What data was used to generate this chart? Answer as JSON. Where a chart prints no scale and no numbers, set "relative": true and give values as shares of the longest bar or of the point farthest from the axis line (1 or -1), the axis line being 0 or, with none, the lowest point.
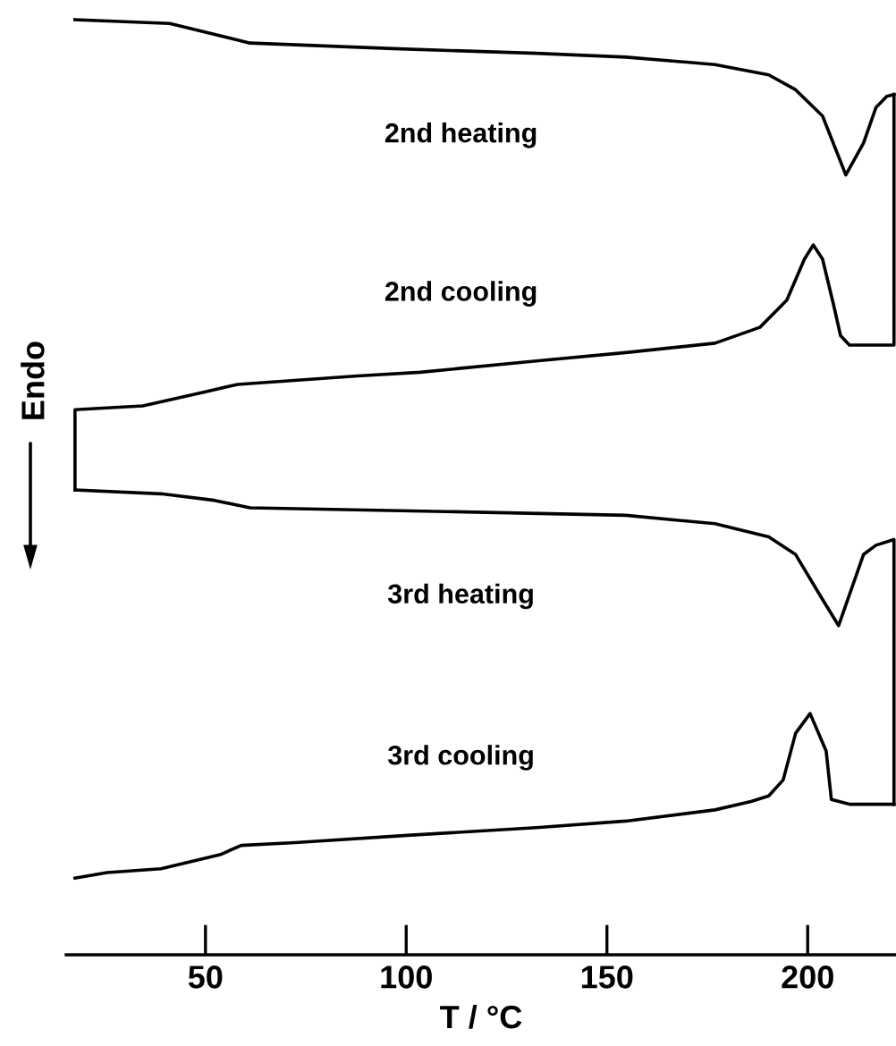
{
  "chart_data": {
    "type": "line",
    "relative": true,
    "xlabel": "T / °C",
    "ylabel": "Endo",
    "xlim": [
      15.3,
      222
    ],
    "xticks": [
      50,
      100,
      150,
      200
    ],
    "tick_labels": "x",
    "grid": false,
    "legend": false,
    "marker": "none",
    "line_style": "solid",
    "series": [
      {
        "name": "2nd heating",
        "color": "#000000",
        "x": [
          17.5,
          41.1,
          61.1,
          96.8,
          132.4,
          154.7,
          176.9,
          190.3,
          197.0,
          203.7,
          209.5,
          213.9,
          217.0,
          219.7,
          221.5
        ],
        "values": [
          1.0,
          0.996,
          0.975,
          0.969,
          0.964,
          0.96,
          0.952,
          0.941,
          0.925,
          0.897,
          0.834,
          0.868,
          0.906,
          0.918,
          0.92
        ]
      },
      {
        "name": "2nd cooling",
        "color": "#000000",
        "x": [
          221.5,
          221.5,
          210.4,
          208.2,
          206.4,
          203.7,
          201.4,
          199.2,
          194.8,
          188.1,
          176.9,
          154.7,
          132.4,
          103.5,
          87.9,
          58.0,
          50.0,
          34.4,
          17.5,
          17.5
        ],
        "values": [
          0.92,
          0.652,
          0.652,
          0.662,
          0.696,
          0.744,
          0.759,
          0.744,
          0.7,
          0.671,
          0.654,
          0.644,
          0.635,
          0.623,
          0.619,
          0.61,
          0.602,
          0.587,
          0.583,
          0.497
        ]
      },
      {
        "name": "3rd heating",
        "color": "#000000",
        "x": [
          17.5,
          38.9,
          52.2,
          61.1,
          110.1,
          154.7,
          176.9,
          190.3,
          197.0,
          203.7,
          207.7,
          213.9,
          217.0,
          221.5,
          221.5
        ],
        "values": [
          0.497,
          0.493,
          0.486,
          0.478,
          0.474,
          0.47,
          0.461,
          0.447,
          0.428,
          0.38,
          0.352,
          0.428,
          0.438,
          0.444,
          0.161
        ]
      },
      {
        "name": "3rd cooling",
        "color": "#000000",
        "x": [
          221.5,
          210.4,
          205.9,
          204.6,
          200.6,
          197.0,
          193.9,
          190.3,
          185.9,
          176.9,
          154.7,
          132.4,
          101.2,
          72.3,
          58.9,
          53.6,
          38.9,
          25.5,
          17.5
        ],
        "values": [
          0.161,
          0.161,
          0.166,
          0.218,
          0.258,
          0.237,
          0.187,
          0.17,
          0.164,
          0.155,
          0.143,
          0.136,
          0.128,
          0.12,
          0.117,
          0.107,
          0.092,
          0.088,
          0.082
        ]
      }
    ]
  }
}
